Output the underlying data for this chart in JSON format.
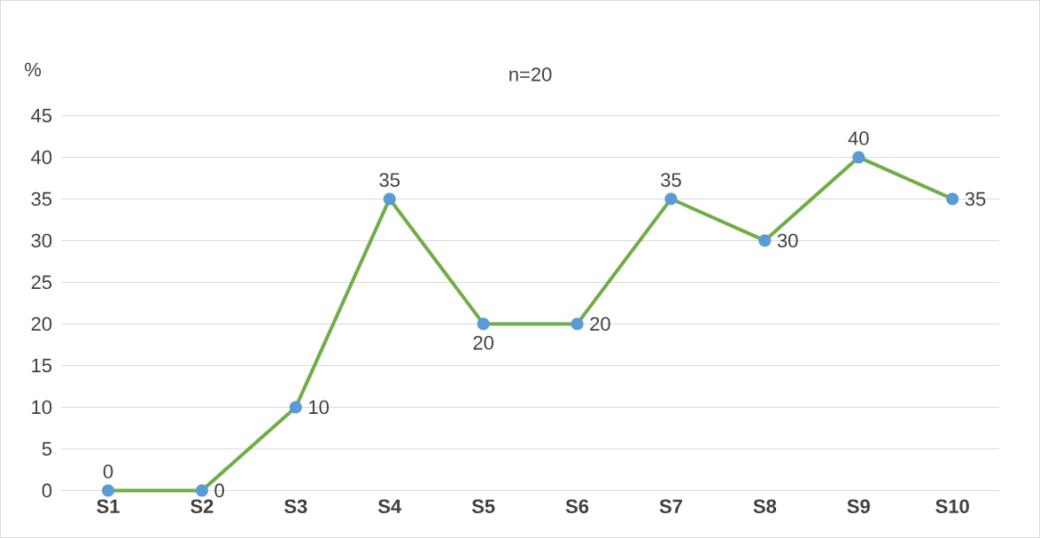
{
  "chart_data": {
    "type": "line",
    "title": "n=20",
    "ylabel": "%",
    "categories": [
      "S1",
      "S2",
      "S3",
      "S4",
      "S5",
      "S6",
      "S7",
      "S8",
      "S9",
      "S10"
    ],
    "values": [
      0,
      0,
      10,
      35,
      20,
      20,
      35,
      30,
      40,
      35
    ],
    "color": "#70ad47",
    "colors": [
      "#5b9bd5",
      "#5b9bd5",
      "#5b9bd5",
      "#5b9bd5",
      "#5b9bd5",
      "#5b9bd5",
      "#5b9bd5",
      "#5b9bd5",
      "#5b9bd5",
      "#5b9bd5"
    ],
    "marker": "circle",
    "ylim": [
      0,
      45
    ],
    "yticks": [
      0,
      5,
      10,
      15,
      20,
      25,
      30,
      35,
      40,
      45
    ],
    "grid": "y",
    "data_labels": true
  }
}
